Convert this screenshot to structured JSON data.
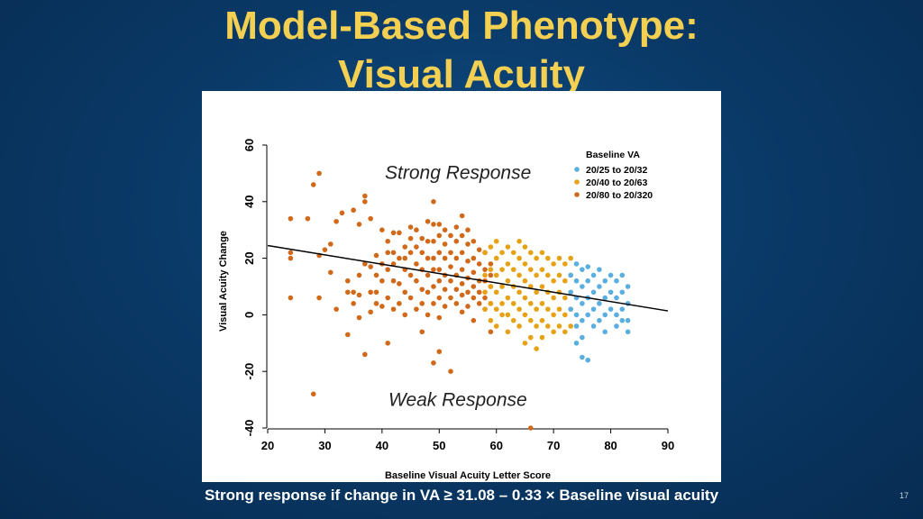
{
  "slide": {
    "title_line1": "Model-Based Phenotype:",
    "title_line2": "Visual Acuity",
    "footer": "Strong response if change in VA ≥ 31.08 – 0.33 × Baseline visual acuity",
    "page_number": "17"
  },
  "chart_data": {
    "type": "scatter",
    "xlabel": "Baseline Visual Acuity Letter Score",
    "ylabel": "Visual Acuity Change",
    "xlim": [
      20,
      90
    ],
    "ylim": [
      -40,
      60
    ],
    "xticks": [
      20,
      30,
      40,
      50,
      60,
      70,
      80,
      90
    ],
    "yticks": [
      -40,
      -20,
      0,
      20,
      40,
      60
    ],
    "annotations": [
      "Strong Response",
      "Weak Response"
    ],
    "legend": {
      "title": "Baseline VA",
      "position": "top-right",
      "entries": [
        {
          "label": "20/25 to 20/32",
          "color": "#5aaee0"
        },
        {
          "label": "20/40 to 20/63",
          "color": "#e6a214"
        },
        {
          "label": "20/80 to 20/320",
          "color": "#d06a1a"
        }
      ]
    },
    "regression_line": {
      "color": "#000000",
      "intercept": 31.08,
      "slope": -0.33
    },
    "series": [
      {
        "color": "#d06a1a",
        "points": [
          [
            24,
            34
          ],
          [
            24,
            22
          ],
          [
            24,
            20
          ],
          [
            24,
            6
          ],
          [
            27,
            34
          ],
          [
            28,
            46
          ],
          [
            28,
            -28
          ],
          [
            29,
            50
          ],
          [
            29,
            21
          ],
          [
            29,
            6
          ],
          [
            30,
            23
          ],
          [
            31,
            25
          ],
          [
            31,
            15
          ],
          [
            32,
            33
          ],
          [
            32,
            2
          ],
          [
            33,
            36
          ],
          [
            34,
            12
          ],
          [
            34,
            8
          ],
          [
            34,
            -7
          ],
          [
            35,
            37
          ],
          [
            35,
            8
          ],
          [
            35,
            4
          ],
          [
            36,
            32
          ],
          [
            36,
            14
          ],
          [
            36,
            7
          ],
          [
            36,
            -1
          ],
          [
            37,
            42
          ],
          [
            37,
            40
          ],
          [
            37,
            18
          ],
          [
            37,
            -14
          ],
          [
            38,
            34
          ],
          [
            38,
            17
          ],
          [
            38,
            8
          ],
          [
            38,
            1
          ],
          [
            39,
            21
          ],
          [
            39,
            14
          ],
          [
            39,
            8
          ],
          [
            39,
            4
          ],
          [
            40,
            30
          ],
          [
            40,
            18
          ],
          [
            40,
            12
          ],
          [
            40,
            3
          ],
          [
            41,
            26
          ],
          [
            41,
            22
          ],
          [
            41,
            16
          ],
          [
            41,
            6
          ],
          [
            41,
            -10
          ],
          [
            42,
            29
          ],
          [
            42,
            22
          ],
          [
            42,
            18
          ],
          [
            42,
            12
          ],
          [
            42,
            2
          ],
          [
            43,
            29
          ],
          [
            43,
            20
          ],
          [
            43,
            11
          ],
          [
            43,
            4
          ],
          [
            44,
            24
          ],
          [
            44,
            20
          ],
          [
            44,
            16
          ],
          [
            44,
            8
          ],
          [
            44,
            0
          ],
          [
            45,
            31
          ],
          [
            45,
            27
          ],
          [
            45,
            22
          ],
          [
            45,
            14
          ],
          [
            45,
            6
          ],
          [
            46,
            30
          ],
          [
            46,
            24
          ],
          [
            46,
            18
          ],
          [
            46,
            12
          ],
          [
            46,
            2
          ],
          [
            47,
            27
          ],
          [
            47,
            22
          ],
          [
            47,
            16
          ],
          [
            47,
            9
          ],
          [
            47,
            4
          ],
          [
            47,
            -6
          ],
          [
            48,
            33
          ],
          [
            48,
            26
          ],
          [
            48,
            20
          ],
          [
            48,
            14
          ],
          [
            48,
            8
          ],
          [
            48,
            0
          ],
          [
            49,
            40
          ],
          [
            49,
            32
          ],
          [
            49,
            26
          ],
          [
            49,
            20
          ],
          [
            49,
            16
          ],
          [
            49,
            10
          ],
          [
            49,
            4
          ],
          [
            49,
            -17
          ],
          [
            50,
            32
          ],
          [
            50,
            28
          ],
          [
            50,
            22
          ],
          [
            50,
            16
          ],
          [
            50,
            12
          ],
          [
            50,
            6
          ],
          [
            50,
            -1
          ],
          [
            50,
            -13
          ],
          [
            51,
            30
          ],
          [
            51,
            25
          ],
          [
            51,
            20
          ],
          [
            51,
            14
          ],
          [
            51,
            9
          ],
          [
            51,
            3
          ],
          [
            52,
            28
          ],
          [
            52,
            22
          ],
          [
            52,
            17
          ],
          [
            52,
            12
          ],
          [
            52,
            6
          ],
          [
            52,
            -20
          ],
          [
            53,
            31
          ],
          [
            53,
            26
          ],
          [
            53,
            20
          ],
          [
            53,
            14
          ],
          [
            53,
            9
          ],
          [
            53,
            4
          ],
          [
            54,
            35
          ],
          [
            54,
            28
          ],
          [
            54,
            22
          ],
          [
            54,
            16
          ],
          [
            54,
            11
          ],
          [
            54,
            7
          ],
          [
            54,
            1
          ],
          [
            55,
            30
          ],
          [
            55,
            25
          ],
          [
            55,
            19
          ],
          [
            55,
            13
          ],
          [
            55,
            8
          ],
          [
            55,
            3
          ],
          [
            56,
            26
          ],
          [
            56,
            20
          ],
          [
            56,
            15
          ],
          [
            56,
            10
          ],
          [
            56,
            6
          ],
          [
            56,
            -2
          ],
          [
            57,
            23
          ],
          [
            57,
            18
          ],
          [
            57,
            12
          ],
          [
            57,
            8
          ],
          [
            57,
            4
          ],
          [
            58,
            22
          ],
          [
            58,
            16
          ],
          [
            58,
            12
          ],
          [
            58,
            6
          ],
          [
            58,
            2
          ],
          [
            59,
            18
          ],
          [
            59,
            14
          ],
          [
            59,
            10
          ],
          [
            59,
            4
          ],
          [
            59,
            -6
          ],
          [
            66,
            -40
          ]
        ]
      },
      {
        "color": "#e6a214",
        "points": [
          [
            58,
            22
          ],
          [
            58,
            14
          ],
          [
            58,
            8
          ],
          [
            58,
            2
          ],
          [
            59,
            24
          ],
          [
            59,
            16
          ],
          [
            59,
            10
          ],
          [
            59,
            4
          ],
          [
            59,
            -2
          ],
          [
            60,
            26
          ],
          [
            60,
            20
          ],
          [
            60,
            14
          ],
          [
            60,
            8
          ],
          [
            60,
            2
          ],
          [
            60,
            -4
          ],
          [
            61,
            22
          ],
          [
            61,
            16
          ],
          [
            61,
            10
          ],
          [
            61,
            4
          ],
          [
            61,
            0
          ],
          [
            62,
            24
          ],
          [
            62,
            18
          ],
          [
            62,
            12
          ],
          [
            62,
            6
          ],
          [
            62,
            0
          ],
          [
            62,
            -6
          ],
          [
            63,
            22
          ],
          [
            63,
            16
          ],
          [
            63,
            10
          ],
          [
            63,
            4
          ],
          [
            63,
            -2
          ],
          [
            64,
            26
          ],
          [
            64,
            20
          ],
          [
            64,
            14
          ],
          [
            64,
            8
          ],
          [
            64,
            2
          ],
          [
            64,
            -4
          ],
          [
            65,
            24
          ],
          [
            65,
            18
          ],
          [
            65,
            12
          ],
          [
            65,
            6
          ],
          [
            65,
            0
          ],
          [
            65,
            -10
          ],
          [
            66,
            22
          ],
          [
            66,
            16
          ],
          [
            66,
            10
          ],
          [
            66,
            4
          ],
          [
            66,
            -2
          ],
          [
            66,
            -8
          ],
          [
            67,
            20
          ],
          [
            67,
            14
          ],
          [
            67,
            8
          ],
          [
            67,
            2
          ],
          [
            67,
            -4
          ],
          [
            67,
            -12
          ],
          [
            68,
            22
          ],
          [
            68,
            16
          ],
          [
            68,
            10
          ],
          [
            68,
            4
          ],
          [
            68,
            -2
          ],
          [
            68,
            -8
          ],
          [
            69,
            20
          ],
          [
            69,
            14
          ],
          [
            69,
            8
          ],
          [
            69,
            2
          ],
          [
            69,
            -4
          ],
          [
            70,
            18
          ],
          [
            70,
            12
          ],
          [
            70,
            6
          ],
          [
            70,
            0
          ],
          [
            70,
            -6
          ],
          [
            71,
            20
          ],
          [
            71,
            14
          ],
          [
            71,
            8
          ],
          [
            71,
            2
          ],
          [
            71,
            -4
          ],
          [
            72,
            18
          ],
          [
            72,
            12
          ],
          [
            72,
            6
          ],
          [
            72,
            0
          ],
          [
            72,
            -6
          ],
          [
            73,
            20
          ],
          [
            73,
            14
          ],
          [
            73,
            8
          ],
          [
            73,
            2
          ],
          [
            73,
            -4
          ]
        ]
      },
      {
        "color": "#5aaee0",
        "points": [
          [
            73,
            14
          ],
          [
            73,
            8
          ],
          [
            73,
            2
          ],
          [
            74,
            18
          ],
          [
            74,
            12
          ],
          [
            74,
            6
          ],
          [
            74,
            0
          ],
          [
            74,
            -4
          ],
          [
            74,
            -10
          ],
          [
            75,
            16
          ],
          [
            75,
            10
          ],
          [
            75,
            4
          ],
          [
            75,
            -2
          ],
          [
            75,
            -8
          ],
          [
            75,
            -15
          ],
          [
            76,
            17
          ],
          [
            76,
            12
          ],
          [
            76,
            6
          ],
          [
            76,
            0
          ],
          [
            76,
            -16
          ],
          [
            77,
            14
          ],
          [
            77,
            8
          ],
          [
            77,
            2
          ],
          [
            77,
            -4
          ],
          [
            78,
            16
          ],
          [
            78,
            10
          ],
          [
            78,
            4
          ],
          [
            78,
            -2
          ],
          [
            79,
            12
          ],
          [
            79,
            6
          ],
          [
            79,
            0
          ],
          [
            79,
            -6
          ],
          [
            80,
            14
          ],
          [
            80,
            8
          ],
          [
            80,
            2
          ],
          [
            81,
            12
          ],
          [
            81,
            6
          ],
          [
            81,
            0
          ],
          [
            81,
            -4
          ],
          [
            82,
            14
          ],
          [
            82,
            8
          ],
          [
            82,
            2
          ],
          [
            82,
            -2
          ],
          [
            83,
            10
          ],
          [
            83,
            4
          ],
          [
            83,
            -2
          ],
          [
            83,
            -6
          ]
        ]
      }
    ]
  }
}
